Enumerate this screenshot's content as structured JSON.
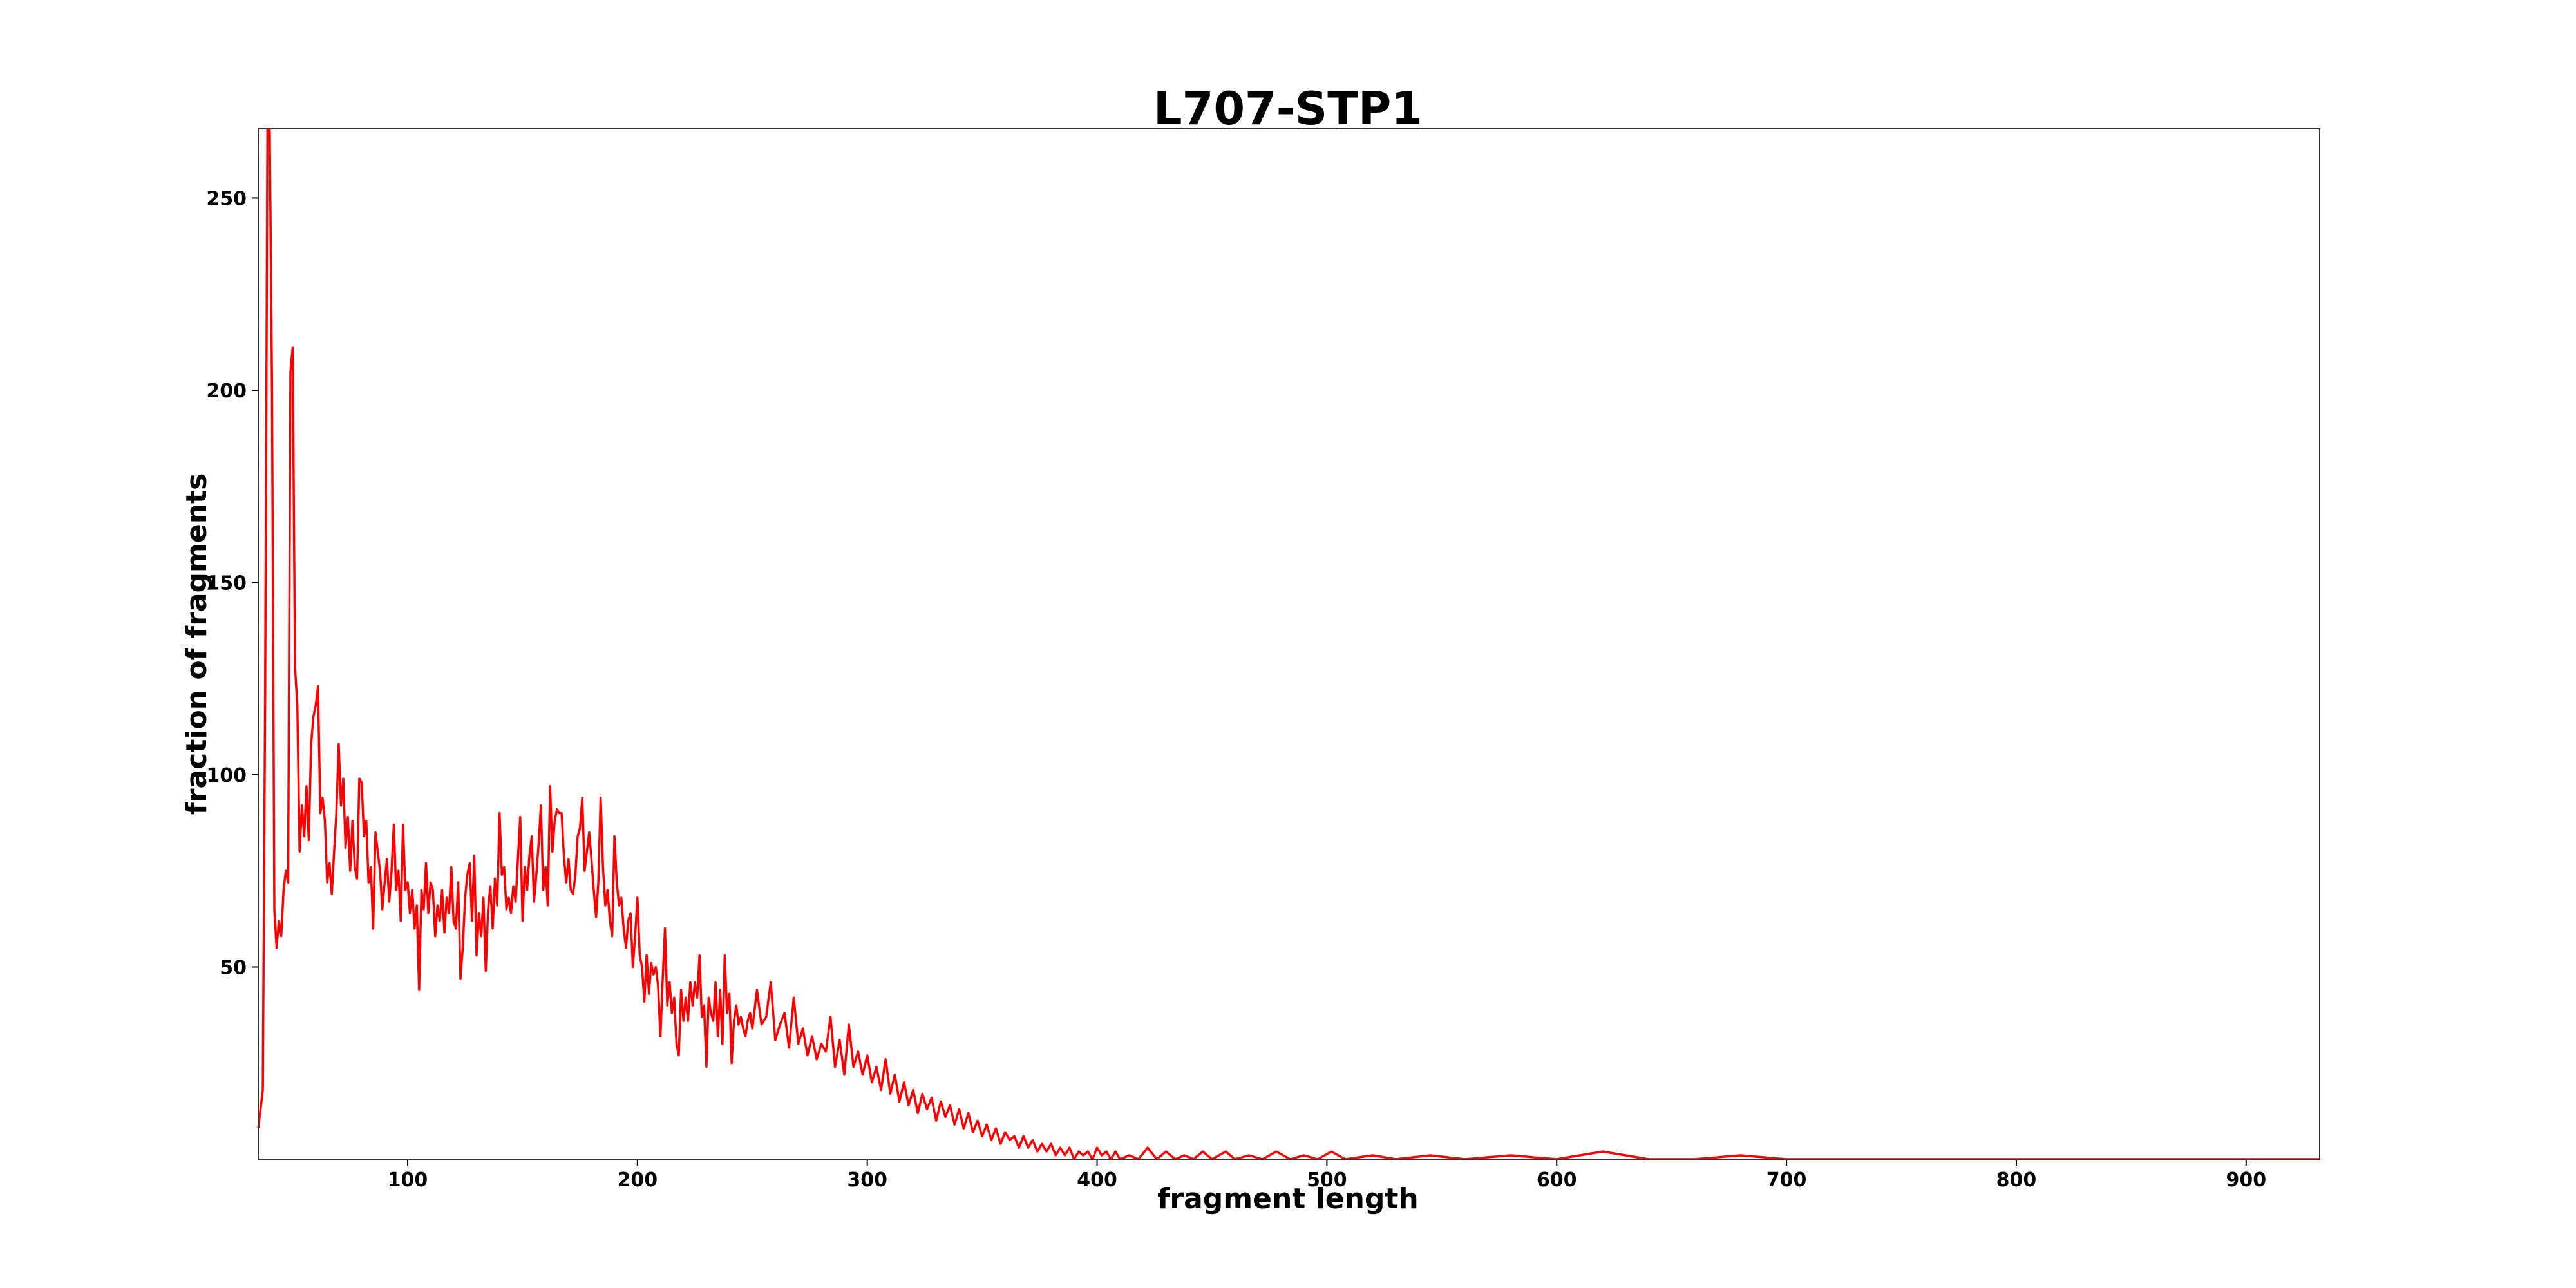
{
  "chart_data": {
    "type": "line",
    "title": "L707-STP1",
    "xlabel": "fragment length",
    "ylabel": "fraction of fragments",
    "xlim": [
      35,
      932
    ],
    "ylim": [
      0,
      268
    ],
    "xticks": [
      100,
      200,
      300,
      400,
      500,
      600,
      700,
      800,
      900
    ],
    "yticks": [
      50,
      100,
      150,
      200,
      250
    ],
    "grid": false,
    "legend": "none",
    "series": [
      {
        "color": "#ff0000",
        "points": [
          [
            35,
            8
          ],
          [
            37,
            18
          ],
          [
            38,
            120
          ],
          [
            39,
            268
          ],
          [
            40,
            268
          ],
          [
            41,
            200
          ],
          [
            42,
            65
          ],
          [
            43,
            55
          ],
          [
            44,
            62
          ],
          [
            45,
            58
          ],
          [
            46,
            70
          ],
          [
            47,
            75
          ],
          [
            48,
            72
          ],
          [
            49,
            205
          ],
          [
            50,
            211
          ],
          [
            51,
            128
          ],
          [
            52,
            118
          ],
          [
            53,
            80
          ],
          [
            54,
            92
          ],
          [
            55,
            84
          ],
          [
            56,
            97
          ],
          [
            57,
            83
          ],
          [
            58,
            108
          ],
          [
            59,
            115
          ],
          [
            60,
            118
          ],
          [
            61,
            123
          ],
          [
            62,
            90
          ],
          [
            63,
            94
          ],
          [
            64,
            88
          ],
          [
            65,
            72
          ],
          [
            66,
            77
          ],
          [
            67,
            69
          ],
          [
            68,
            80
          ],
          [
            69,
            90
          ],
          [
            70,
            108
          ],
          [
            71,
            92
          ],
          [
            72,
            99
          ],
          [
            73,
            81
          ],
          [
            74,
            89
          ],
          [
            75,
            75
          ],
          [
            76,
            88
          ],
          [
            77,
            76
          ],
          [
            78,
            73
          ],
          [
            79,
            99
          ],
          [
            80,
            98
          ],
          [
            81,
            84
          ],
          [
            82,
            88
          ],
          [
            83,
            72
          ],
          [
            84,
            76
          ],
          [
            85,
            60
          ],
          [
            86,
            85
          ],
          [
            87,
            80
          ],
          [
            88,
            75
          ],
          [
            89,
            65
          ],
          [
            90,
            72
          ],
          [
            91,
            78
          ],
          [
            92,
            67
          ],
          [
            93,
            75
          ],
          [
            94,
            87
          ],
          [
            95,
            70
          ],
          [
            96,
            75
          ],
          [
            97,
            62
          ],
          [
            98,
            87
          ],
          [
            99,
            70
          ],
          [
            100,
            72
          ],
          [
            101,
            64
          ],
          [
            102,
            70
          ],
          [
            103,
            60
          ],
          [
            104,
            66
          ],
          [
            105,
            44
          ],
          [
            106,
            70
          ],
          [
            107,
            65
          ],
          [
            108,
            77
          ],
          [
            109,
            64
          ],
          [
            110,
            72
          ],
          [
            111,
            70
          ],
          [
            112,
            58
          ],
          [
            113,
            66
          ],
          [
            114,
            62
          ],
          [
            115,
            70
          ],
          [
            116,
            59
          ],
          [
            117,
            68
          ],
          [
            118,
            64
          ],
          [
            119,
            76
          ],
          [
            120,
            62
          ],
          [
            121,
            60
          ],
          [
            122,
            72
          ],
          [
            123,
            47
          ],
          [
            124,
            55
          ],
          [
            125,
            68
          ],
          [
            126,
            74
          ],
          [
            127,
            77
          ],
          [
            128,
            62
          ],
          [
            129,
            79
          ],
          [
            130,
            53
          ],
          [
            131,
            64
          ],
          [
            132,
            58
          ],
          [
            133,
            68
          ],
          [
            134,
            49
          ],
          [
            135,
            65
          ],
          [
            136,
            71
          ],
          [
            137,
            60
          ],
          [
            138,
            73
          ],
          [
            139,
            66
          ],
          [
            140,
            90
          ],
          [
            141,
            74
          ],
          [
            142,
            76
          ],
          [
            143,
            65
          ],
          [
            144,
            68
          ],
          [
            145,
            64
          ],
          [
            146,
            71
          ],
          [
            147,
            67
          ],
          [
            148,
            78
          ],
          [
            149,
            89
          ],
          [
            150,
            62
          ],
          [
            151,
            76
          ],
          [
            152,
            70
          ],
          [
            153,
            79
          ],
          [
            154,
            84
          ],
          [
            155,
            67
          ],
          [
            156,
            74
          ],
          [
            157,
            82
          ],
          [
            158,
            92
          ],
          [
            159,
            70
          ],
          [
            160,
            76
          ],
          [
            161,
            66
          ],
          [
            162,
            97
          ],
          [
            163,
            80
          ],
          [
            164,
            88
          ],
          [
            165,
            91
          ],
          [
            166,
            90
          ],
          [
            167,
            90
          ],
          [
            168,
            79
          ],
          [
            169,
            72
          ],
          [
            170,
            78
          ],
          [
            171,
            70
          ],
          [
            172,
            69
          ],
          [
            173,
            74
          ],
          [
            174,
            84
          ],
          [
            175,
            86
          ],
          [
            176,
            94
          ],
          [
            177,
            75
          ],
          [
            178,
            80
          ],
          [
            179,
            85
          ],
          [
            180,
            78
          ],
          [
            181,
            70
          ],
          [
            182,
            63
          ],
          [
            183,
            72
          ],
          [
            184,
            94
          ],
          [
            185,
            76
          ],
          [
            186,
            66
          ],
          [
            187,
            70
          ],
          [
            188,
            62
          ],
          [
            189,
            58
          ],
          [
            190,
            84
          ],
          [
            191,
            72
          ],
          [
            192,
            66
          ],
          [
            193,
            68
          ],
          [
            194,
            60
          ],
          [
            195,
            55
          ],
          [
            196,
            62
          ],
          [
            197,
            64
          ],
          [
            198,
            50
          ],
          [
            199,
            58
          ],
          [
            200,
            68
          ],
          [
            201,
            53
          ],
          [
            202,
            50
          ],
          [
            203,
            41
          ],
          [
            204,
            53
          ],
          [
            205,
            43
          ],
          [
            206,
            51
          ],
          [
            207,
            48
          ],
          [
            208,
            50
          ],
          [
            209,
            45
          ],
          [
            210,
            32
          ],
          [
            211,
            47
          ],
          [
            212,
            60
          ],
          [
            213,
            40
          ],
          [
            214,
            46
          ],
          [
            215,
            38
          ],
          [
            216,
            42
          ],
          [
            217,
            30
          ],
          [
            218,
            27
          ],
          [
            219,
            44
          ],
          [
            220,
            36
          ],
          [
            221,
            42
          ],
          [
            222,
            36
          ],
          [
            223,
            46
          ],
          [
            224,
            40
          ],
          [
            225,
            46
          ],
          [
            226,
            42
          ],
          [
            227,
            53
          ],
          [
            228,
            37
          ],
          [
            229,
            40
          ],
          [
            230,
            24
          ],
          [
            231,
            42
          ],
          [
            232,
            38
          ],
          [
            233,
            36
          ],
          [
            234,
            46
          ],
          [
            235,
            32
          ],
          [
            236,
            44
          ],
          [
            237,
            30
          ],
          [
            238,
            53
          ],
          [
            239,
            38
          ],
          [
            240,
            43
          ],
          [
            241,
            25
          ],
          [
            242,
            36
          ],
          [
            243,
            40
          ],
          [
            244,
            35
          ],
          [
            245,
            37
          ],
          [
            246,
            34
          ],
          [
            247,
            32
          ],
          [
            248,
            36
          ],
          [
            249,
            38
          ],
          [
            250,
            34
          ],
          [
            252,
            44
          ],
          [
            254,
            35
          ],
          [
            256,
            37
          ],
          [
            258,
            46
          ],
          [
            260,
            31
          ],
          [
            262,
            35
          ],
          [
            264,
            38
          ],
          [
            266,
            29
          ],
          [
            268,
            42
          ],
          [
            270,
            30
          ],
          [
            272,
            34
          ],
          [
            274,
            27
          ],
          [
            276,
            32
          ],
          [
            278,
            26
          ],
          [
            280,
            30
          ],
          [
            282,
            28
          ],
          [
            284,
            37
          ],
          [
            286,
            24
          ],
          [
            288,
            31
          ],
          [
            290,
            22
          ],
          [
            292,
            35
          ],
          [
            294,
            24
          ],
          [
            296,
            28
          ],
          [
            298,
            22
          ],
          [
            300,
            27
          ],
          [
            302,
            20
          ],
          [
            304,
            24
          ],
          [
            306,
            18
          ],
          [
            308,
            26
          ],
          [
            310,
            17
          ],
          [
            312,
            22
          ],
          [
            314,
            15
          ],
          [
            316,
            20
          ],
          [
            318,
            14
          ],
          [
            320,
            18
          ],
          [
            322,
            12
          ],
          [
            324,
            17
          ],
          [
            326,
            13
          ],
          [
            328,
            16
          ],
          [
            330,
            10
          ],
          [
            332,
            15
          ],
          [
            334,
            11
          ],
          [
            336,
            14
          ],
          [
            338,
            9
          ],
          [
            340,
            13
          ],
          [
            342,
            8
          ],
          [
            344,
            12
          ],
          [
            346,
            7
          ],
          [
            348,
            10
          ],
          [
            350,
            6
          ],
          [
            352,
            9
          ],
          [
            354,
            5
          ],
          [
            356,
            8
          ],
          [
            358,
            4
          ],
          [
            360,
            7
          ],
          [
            362,
            5
          ],
          [
            364,
            6
          ],
          [
            366,
            3
          ],
          [
            368,
            6
          ],
          [
            370,
            3
          ],
          [
            372,
            5
          ],
          [
            374,
            2
          ],
          [
            376,
            4
          ],
          [
            378,
            2
          ],
          [
            380,
            4
          ],
          [
            382,
            1
          ],
          [
            384,
            3
          ],
          [
            386,
            1
          ],
          [
            388,
            3
          ],
          [
            390,
            0
          ],
          [
            392,
            2
          ],
          [
            394,
            1
          ],
          [
            396,
            2
          ],
          [
            398,
            0
          ],
          [
            400,
            3
          ],
          [
            402,
            1
          ],
          [
            404,
            2
          ],
          [
            406,
            0
          ],
          [
            408,
            2
          ],
          [
            410,
            0
          ],
          [
            414,
            1
          ],
          [
            418,
            0
          ],
          [
            422,
            3
          ],
          [
            426,
            0
          ],
          [
            430,
            2
          ],
          [
            434,
            0
          ],
          [
            438,
            1
          ],
          [
            442,
            0
          ],
          [
            446,
            2
          ],
          [
            450,
            0
          ],
          [
            456,
            2
          ],
          [
            460,
            0
          ],
          [
            466,
            1
          ],
          [
            472,
            0
          ],
          [
            478,
            2
          ],
          [
            484,
            0
          ],
          [
            490,
            1
          ],
          [
            496,
            0
          ],
          [
            502,
            2
          ],
          [
            508,
            0
          ],
          [
            520,
            1
          ],
          [
            530,
            0
          ],
          [
            545,
            1
          ],
          [
            560,
            0
          ],
          [
            580,
            1
          ],
          [
            600,
            0
          ],
          [
            620,
            2
          ],
          [
            640,
            0
          ],
          [
            660,
            0
          ],
          [
            680,
            1
          ],
          [
            700,
            0
          ],
          [
            932,
            0
          ]
        ]
      }
    ]
  }
}
